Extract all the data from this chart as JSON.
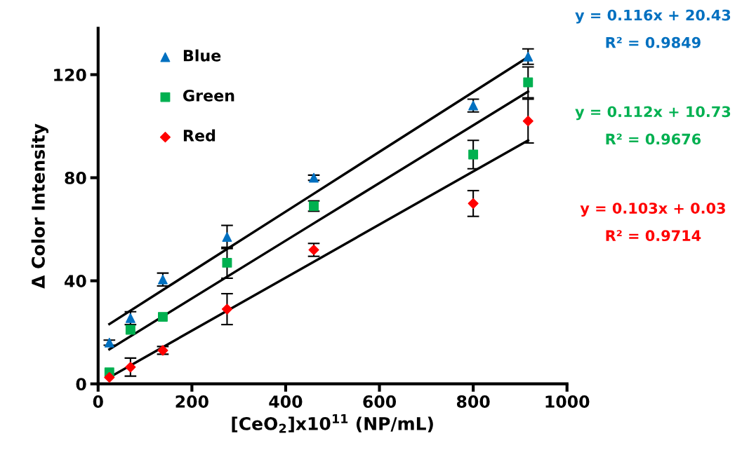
{
  "chart_data": {
    "type": "scatter",
    "xlabel": "[CeO$_{2}$]x10$^{11}$ (NP/mL)",
    "ylabel": "Δ Color Intensity",
    "x": [
      24,
      69,
      138,
      275,
      460,
      800,
      917
    ],
    "series": [
      {
        "name": "Blue",
        "color": "#0070c0",
        "marker": "triangle",
        "values": [
          16,
          25.5,
          40.5,
          57,
          80,
          108,
          127
        ],
        "errors": [
          1,
          2.5,
          2.5,
          4.5,
          1,
          2.5,
          3
        ]
      },
      {
        "name": "Green",
        "color": "#00b050",
        "marker": "square",
        "values": [
          4.5,
          21,
          26,
          47,
          69,
          89,
          117
        ],
        "errors": [
          null,
          null,
          null,
          6,
          2,
          5.5,
          6
        ]
      },
      {
        "name": "Red",
        "color": "#ff0000",
        "marker": "diamond",
        "values": [
          2.5,
          6.5,
          13,
          29,
          52,
          70,
          102
        ],
        "errors": [
          null,
          3.5,
          1.5,
          6,
          2.5,
          5,
          8.5
        ]
      },
      {
        "type": "line",
        "color": "#000000",
        "x": [
          24,
          460,
          917
        ],
        "values": [
          23.2,
          73.8,
          126.8
        ]
      },
      {
        "type": "line",
        "color": "#000000",
        "x": [
          24,
          460,
          917
        ],
        "values": [
          13.4,
          62.3,
          113.4
        ]
      },
      {
        "type": "line",
        "color": "#000000",
        "x": [
          24,
          460,
          917
        ],
        "values": [
          2.5,
          47.4,
          94.5
        ]
      }
    ],
    "annotations": [
      "y = 0.116x + 20.43",
      "R² = 0.9849",
      "y = 0.112x + 10.73",
      "R² = 0.9676",
      "y = 0.103x + 0.03",
      "R² = 0.9714"
    ],
    "xlim": [
      0,
      1000
    ],
    "xticks": [
      0,
      200,
      400,
      600,
      800,
      1000
    ],
    "ylim": [
      0,
      138
    ],
    "yticks": [
      0,
      40,
      80,
      120
    ],
    "grid": false,
    "legend": "top left"
  }
}
